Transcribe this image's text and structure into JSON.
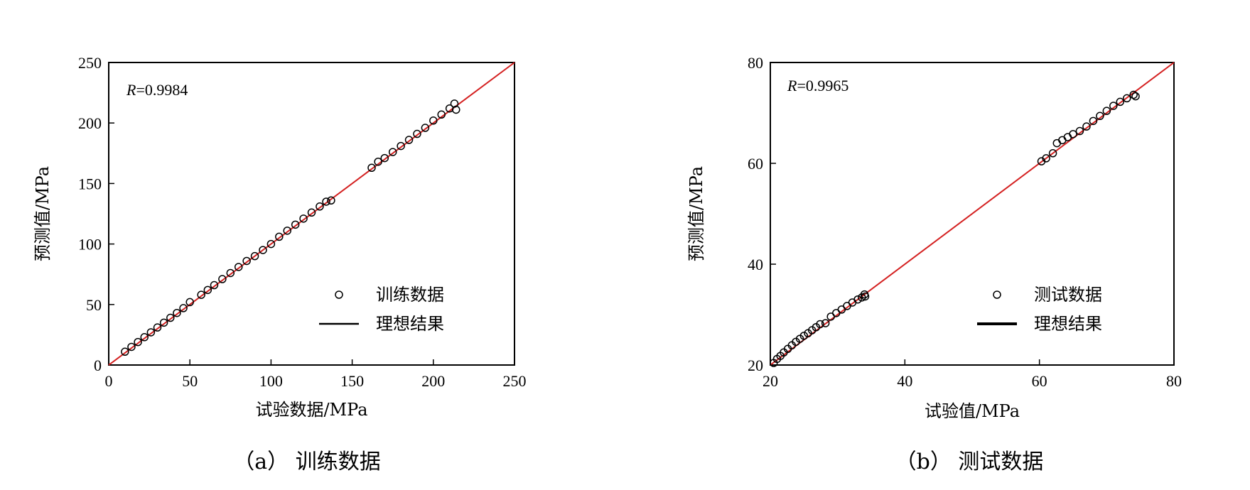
{
  "chart_data": [
    {
      "type": "scatter",
      "id": "a",
      "caption": "（a） 训练数据",
      "r_label": "R",
      "r_value": "=0.9984",
      "xlabel": "试验数据/MPa",
      "ylabel": "预测值/MPa",
      "xlim": [
        0,
        250
      ],
      "ylim": [
        0,
        250
      ],
      "xticks": [
        0,
        50,
        100,
        150,
        200,
        250
      ],
      "yticks": [
        0,
        50,
        100,
        150,
        200,
        250
      ],
      "legend_position": "bottom-right",
      "ideal_line_color": "#d42020",
      "series": [
        {
          "name": "训练数据",
          "marker": "open-circle",
          "points": [
            [
              10,
              11
            ],
            [
              14,
              15
            ],
            [
              18,
              19
            ],
            [
              22,
              23
            ],
            [
              26,
              27
            ],
            [
              30,
              31
            ],
            [
              34,
              35
            ],
            [
              38,
              39
            ],
            [
              42,
              43
            ],
            [
              46,
              47
            ],
            [
              50,
              52
            ],
            [
              57,
              58
            ],
            [
              61,
              62
            ],
            [
              65,
              66
            ],
            [
              70,
              71
            ],
            [
              75,
              76
            ],
            [
              80,
              81
            ],
            [
              85,
              86
            ],
            [
              90,
              90
            ],
            [
              95,
              95
            ],
            [
              100,
              100
            ],
            [
              105,
              106
            ],
            [
              110,
              111
            ],
            [
              115,
              116
            ],
            [
              120,
              121
            ],
            [
              125,
              126
            ],
            [
              130,
              131
            ],
            [
              134,
              135
            ],
            [
              137,
              136
            ],
            [
              162,
              163
            ],
            [
              166,
              168
            ],
            [
              170,
              171
            ],
            [
              175,
              176
            ],
            [
              180,
              181
            ],
            [
              185,
              186
            ],
            [
              190,
              191
            ],
            [
              195,
              196
            ],
            [
              200,
              202
            ],
            [
              205,
              207
            ],
            [
              210,
              212
            ],
            [
              213,
              216
            ],
            [
              214,
              211
            ]
          ]
        },
        {
          "name": "理想结果",
          "type": "line",
          "points": [
            [
              0,
              0
            ],
            [
              250,
              250
            ]
          ]
        }
      ]
    },
    {
      "type": "scatter",
      "id": "b",
      "caption": "（b） 测试数据",
      "r_label": "R",
      "r_value": "=0.9965",
      "xlabel": "试验值/MPa",
      "ylabel": "预测值/MPa",
      "xlim": [
        20,
        80
      ],
      "ylim": [
        20,
        80
      ],
      "xticks": [
        20,
        40,
        60,
        80
      ],
      "yticks": [
        20,
        40,
        60,
        80
      ],
      "legend_position": "bottom-right",
      "ideal_line_color": "#d42020",
      "series": [
        {
          "name": "测试数据",
          "marker": "open-circle",
          "points": [
            [
              20.5,
              20.4
            ],
            [
              21,
              21.2
            ],
            [
              21.5,
              21.8
            ],
            [
              22,
              22.5
            ],
            [
              22.6,
              23.2
            ],
            [
              23.2,
              23.9
            ],
            [
              23.8,
              24.6
            ],
            [
              24.4,
              25.2
            ],
            [
              25,
              25.8
            ],
            [
              25.6,
              26.3
            ],
            [
              26.2,
              26.9
            ],
            [
              26.8,
              27.5
            ],
            [
              27.4,
              28.1
            ],
            [
              28.2,
              28.3
            ],
            [
              29,
              29.6
            ],
            [
              29.8,
              30.3
            ],
            [
              30.6,
              31.0
            ],
            [
              31.4,
              31.7
            ],
            [
              32.2,
              32.4
            ],
            [
              33,
              33.0
            ],
            [
              33.6,
              33.4
            ],
            [
              34,
              34.0
            ],
            [
              34.1,
              33.6
            ],
            [
              60.3,
              60.4
            ],
            [
              61,
              61.0
            ],
            [
              62,
              62.0
            ],
            [
              62.6,
              64.0
            ],
            [
              63.4,
              64.6
            ],
            [
              64.2,
              65.2
            ],
            [
              65,
              65.8
            ],
            [
              66,
              66.4
            ],
            [
              67,
              67.3
            ],
            [
              68,
              68.4
            ],
            [
              69,
              69.4
            ],
            [
              70,
              70.4
            ],
            [
              71,
              71.4
            ],
            [
              72,
              72.2
            ],
            [
              73,
              72.9
            ],
            [
              74,
              73.6
            ],
            [
              74.3,
              73.3
            ]
          ]
        },
        {
          "name": "理想结果",
          "type": "line",
          "points": [
            [
              20,
              20
            ],
            [
              80,
              80
            ]
          ]
        }
      ]
    }
  ]
}
